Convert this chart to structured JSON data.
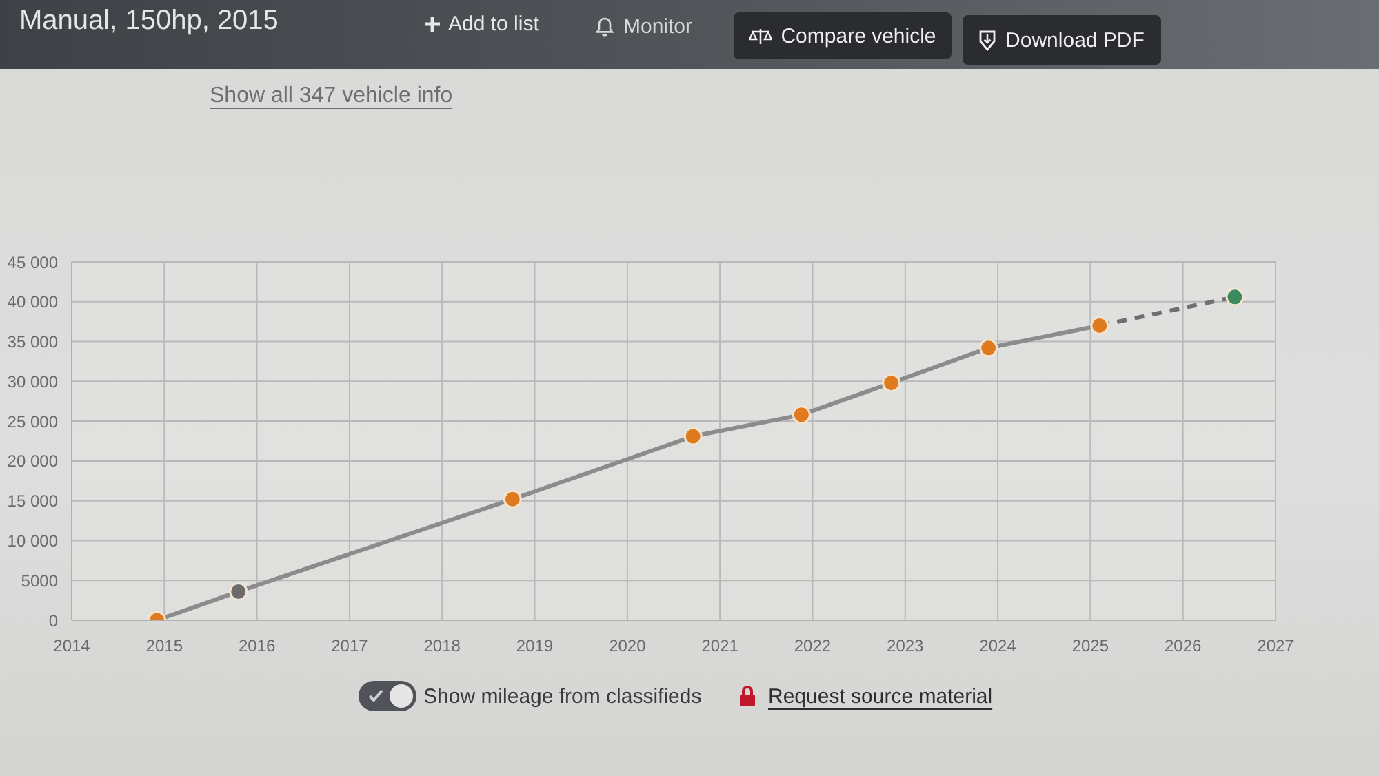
{
  "chart_data": {
    "type": "line",
    "title": "Manual, 150hp, 2015",
    "annotations": [
      "Add to list",
      "Monitor",
      "Compare vehicle",
      "Download PDF",
      "Show all 347 vehicle info",
      "Show mileage from classifieds",
      "Request source material"
    ],
    "series": [
      {
        "color": "#8c8c8c",
        "x": [
          2014.92,
          2015.8,
          2018.76,
          2020.71,
          2021.88,
          2022.85,
          2023.9,
          2025.1
        ],
        "values": [
          0,
          3600,
          15200,
          23100,
          25800,
          29800,
          34200,
          37000
        ],
        "colors": [
          "#e07a1f",
          "#6b6b6b",
          "#e07a1f",
          "#e07a1f",
          "#e07a1f",
          "#e07a1f",
          "#e07a1f",
          "#e07a1f"
        ]
      },
      {
        "color": "#6f6f6f",
        "line_style": "dashed",
        "x": [
          2025.1,
          2026.56
        ],
        "values": [
          37000,
          40600
        ],
        "colors": [
          null,
          "#3b8b5e"
        ]
      }
    ],
    "xlim": [
      2014,
      2027
    ],
    "xticks": [
      2014,
      2015,
      2016,
      2017,
      2018,
      2019,
      2020,
      2021,
      2022,
      2023,
      2024,
      2025,
      2026,
      2027
    ],
    "ylim": [
      0,
      45000
    ],
    "yticks": [
      0,
      5000,
      {
        "value": 10000,
        "label": "10 000"
      },
      {
        "value": 15000,
        "label": "15 000"
      },
      {
        "value": 20000,
        "label": "20 000"
      },
      {
        "value": 25000,
        "label": "25 000"
      },
      {
        "value": 30000,
        "label": "30 000"
      },
      {
        "value": 35000,
        "label": "35 000"
      },
      {
        "value": 40000,
        "label": "40 000"
      },
      {
        "value": 45000,
        "label": "45 000"
      }
    ],
    "grid": true,
    "marker": "circle",
    "line_style": "solid"
  }
}
